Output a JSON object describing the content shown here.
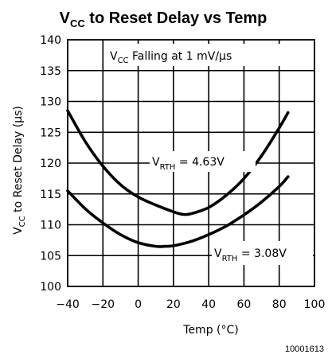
{
  "chart_data": {
    "type": "line",
    "title": {
      "main_prefix": "V",
      "main_sub": "CC",
      "main_suffix": " to Reset Delay vs Temp"
    },
    "xlabel": "Temp (°C)",
    "ylabel": {
      "prefix": "V",
      "sub": "CC",
      "suffix": " to Reset Delay (µs)"
    },
    "xlim": [
      -40,
      100
    ],
    "ylim": [
      100,
      140
    ],
    "xticks": [
      -40,
      -20,
      0,
      20,
      40,
      60,
      80,
      100
    ],
    "yticks": [
      100,
      105,
      110,
      115,
      120,
      125,
      130,
      135,
      140
    ],
    "grid": true,
    "condition_label": {
      "prefix": "V",
      "sub": "CC",
      "suffix": " Falling at 1 mV/µs"
    },
    "series": [
      {
        "label_prefix": "V",
        "label_sub": "RTH",
        "label_suffix": " = 4.63V",
        "x": [
          -40,
          -30,
          -20,
          -10,
          0,
          10,
          20,
          25,
          30,
          40,
          50,
          60,
          70,
          80,
          85
        ],
        "y": [
          128.5,
          123.5,
          119.5,
          116.5,
          114.5,
          113.2,
          112.1,
          111.7,
          111.8,
          112.8,
          114.8,
          117.5,
          121.2,
          125.7,
          128.2
        ]
      },
      {
        "label_prefix": "V",
        "label_sub": "RTH",
        "label_suffix": " = 3.08V",
        "x": [
          -40,
          -30,
          -20,
          -10,
          0,
          10,
          15,
          20,
          30,
          40,
          50,
          60,
          70,
          80,
          85
        ],
        "y": [
          115.5,
          112.6,
          110.3,
          108.4,
          107.1,
          106.5,
          106.5,
          106.6,
          107.3,
          108.4,
          109.8,
          111.6,
          113.7,
          116.2,
          117.8
        ]
      }
    ],
    "figure_id": "10001613"
  }
}
